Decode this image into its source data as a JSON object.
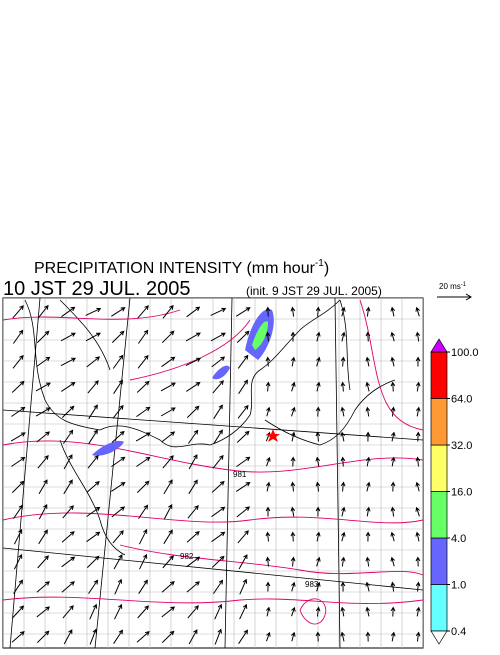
{
  "title": {
    "main": "PRECIPITATION INTENSITY (mm hour",
    "sup": "-1",
    "close": ")"
  },
  "valid_time": "10 JST 29 JUL. 2005",
  "init_time": "(init. 9 JST 29 JUL. 2005)",
  "reference_vector": {
    "label": "20 ms",
    "sup": "-1"
  },
  "contour_labels": [
    "981",
    "982",
    "983"
  ],
  "colorbar": {
    "levels": [
      {
        "value": 0.4,
        "label": "0.4"
      },
      {
        "value": 1,
        "label": "1.0"
      },
      {
        "value": 4,
        "label": "4.0"
      },
      {
        "value": 16,
        "label": "16.0"
      },
      {
        "value": 32,
        "label": "32.0"
      },
      {
        "value": 64,
        "label": "64.0"
      },
      {
        "value": 100,
        "label": "100.0"
      }
    ],
    "colors": [
      "#66ffff",
      "#6666ff",
      "#66ff66",
      "#ffff66",
      "#ff9933",
      "#ff0000"
    ],
    "under_color": "#ffffff",
    "over_color": "#cc00ff"
  }
}
